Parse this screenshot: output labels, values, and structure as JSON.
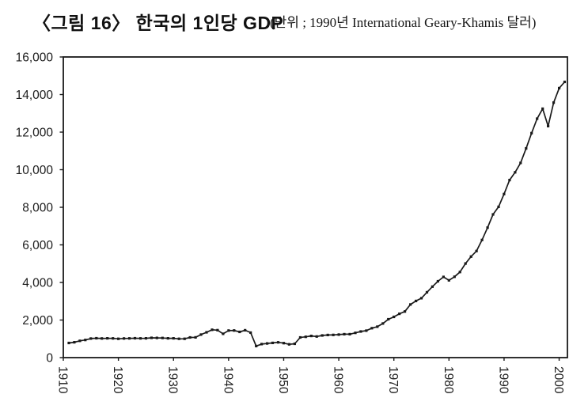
{
  "header": {
    "title": "〈그림 16〉 한국의 1인당 GDP",
    "unit_note": "(단위 ; 1990년 International Geary-Khamis 달러)"
  },
  "chart_data": {
    "type": "line",
    "title": "한국의 1인당 GDP",
    "subtitle": "단위 ; 1990년 International Geary-Khamis 달러",
    "series_name": "1인당 GDP (1990 International Geary-Khamis 달러)",
    "x": [
      1911,
      1912,
      1913,
      1914,
      1915,
      1916,
      1917,
      1918,
      1919,
      1920,
      1921,
      1922,
      1923,
      1924,
      1925,
      1926,
      1927,
      1928,
      1929,
      1930,
      1931,
      1932,
      1933,
      1934,
      1935,
      1936,
      1937,
      1938,
      1939,
      1940,
      1941,
      1942,
      1943,
      1944,
      1945,
      1946,
      1947,
      1948,
      1949,
      1950,
      1951,
      1952,
      1953,
      1954,
      1955,
      1956,
      1957,
      1958,
      1959,
      1960,
      1961,
      1962,
      1963,
      1964,
      1965,
      1966,
      1967,
      1968,
      1969,
      1970,
      1971,
      1972,
      1973,
      1974,
      1975,
      1976,
      1977,
      1978,
      1979,
      1980,
      1981,
      1982,
      1983,
      1984,
      1985,
      1986,
      1987,
      1988,
      1989,
      1990,
      1991,
      1992,
      1993,
      1994,
      1995,
      1996,
      1997,
      1998,
      1999,
      2000,
      2001
    ],
    "values": [
      777,
      815,
      893,
      937,
      1016,
      1031,
      1021,
      1028,
      1022,
      1004,
      1018,
      1023,
      1030,
      1022,
      1027,
      1054,
      1049,
      1045,
      1027,
      1026,
      1000,
      1002,
      1074,
      1077,
      1225,
      1346,
      1482,
      1459,
      1268,
      1442,
      1443,
      1370,
      1455,
      1330,
      616,
      721,
      753,
      784,
      813,
      770,
      709,
      738,
      1072,
      1106,
      1152,
      1124,
      1177,
      1205,
      1209,
      1226,
      1247,
      1245,
      1316,
      1390,
      1436,
      1568,
      1645,
      1816,
      2040,
      2167,
      2332,
      2456,
      2824,
      3015,
      3162,
      3476,
      3775,
      4064,
      4294,
      4114,
      4302,
      4557,
      5007,
      5375,
      5670,
      6263,
      6916,
      7621,
      8027,
      8704,
      9448,
      9860,
      10361,
      11131,
      11947,
      12717,
      13248,
      12319,
      13572,
      14343,
      14673
    ],
    "xlabel": "",
    "ylabel": "",
    "xlim": [
      1910,
      2001.5
    ],
    "ylim": [
      0,
      16000
    ],
    "x_ticks": [
      1910,
      1920,
      1930,
      1940,
      1950,
      1960,
      1970,
      1980,
      1990,
      2000
    ],
    "x_tick_labels": [
      "1910",
      "1920",
      "1930",
      "1940",
      "1950",
      "1960",
      "1970",
      "1980",
      "1990",
      "2000"
    ],
    "y_ticks": [
      0,
      2000,
      4000,
      6000,
      8000,
      10000,
      12000,
      14000,
      16000
    ],
    "y_tick_labels": [
      "0",
      "2,000",
      "4,000",
      "6,000",
      "8,000",
      "10,000",
      "12,000",
      "14,000",
      "16,000"
    ],
    "grid": false,
    "legend": "none",
    "marker": "square",
    "ink_color": "#1a1a1a",
    "background_color": "#ffffff"
  }
}
